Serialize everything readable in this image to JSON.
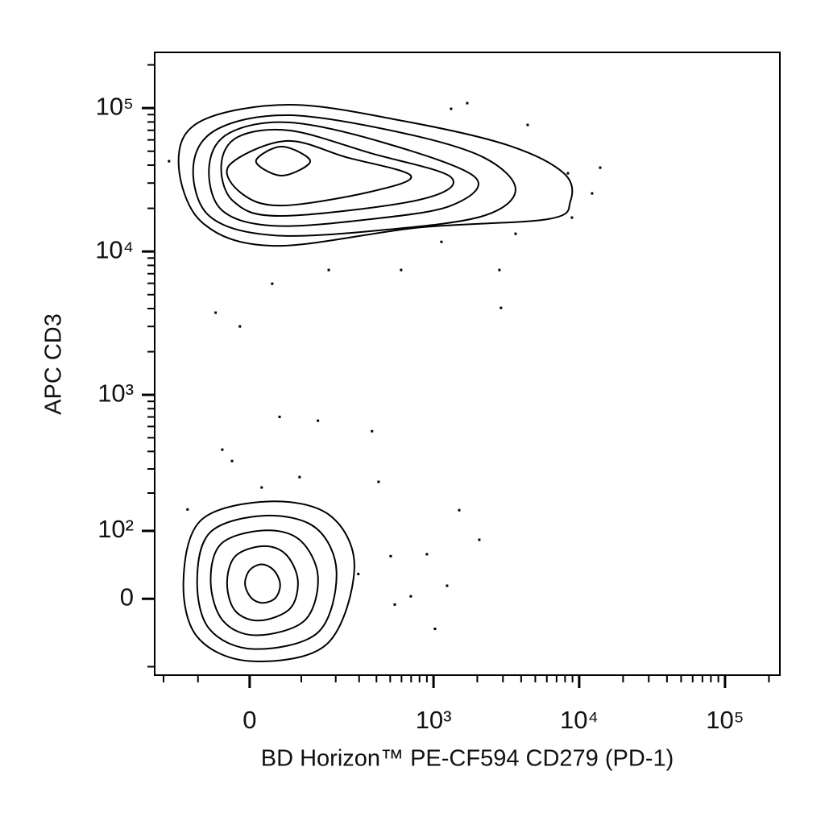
{
  "chart_data": {
    "type": "contour",
    "xlabel": "BD Horizon™ PE-CF594 CD279 (PD-1)",
    "ylabel": "APC CD3",
    "xscale": "biexponential",
    "yscale": "biexponential",
    "xlim": [
      -234,
      237800
    ],
    "ylim": [
      -118,
      244500
    ],
    "xticks": [
      0,
      {
        "value": 1000,
        "label": "10³"
      },
      {
        "value": 10000,
        "label": "10⁴"
      },
      {
        "value": 100000,
        "label": "10⁵"
      }
    ],
    "yticks": [
      0,
      {
        "value": 100,
        "label": "10²"
      },
      {
        "value": 1000,
        "label": "10³"
      },
      {
        "value": 10000,
        "label": "10⁴"
      },
      {
        "value": 100000,
        "label": "10⁵"
      }
    ],
    "xminorticks": [
      -200,
      -100,
      100,
      200,
      300,
      400,
      500,
      600,
      700,
      800,
      900,
      2000,
      3000,
      4000,
      5000,
      6000,
      7000,
      8000,
      9000,
      20000,
      30000,
      40000,
      50000,
      60000,
      70000,
      80000,
      90000,
      200000
    ],
    "yminorticks": [
      -100,
      200,
      300,
      400,
      500,
      600,
      700,
      800,
      900,
      2000,
      3000,
      4000,
      5000,
      6000,
      7000,
      8000,
      9000,
      20000,
      30000,
      40000,
      50000,
      60000,
      70000,
      80000,
      90000,
      200000
    ],
    "color": "#000000",
    "contours": [
      {
        "x": [
          277,
          181,
          36,
          -92,
          -137,
          -102,
          0,
          168
        ],
        "y": [
          39,
          134,
          173,
          124,
          23,
          -49,
          -89,
          -61
        ]
      },
      {
        "x": [
          203,
          137,
          28,
          -72,
          -102,
          -75,
          7,
          143
        ],
        "y": [
          33,
          106,
          134,
          98,
          23,
          -38,
          -68,
          -43
        ]
      },
      {
        "x": [
          143,
          96,
          25,
          -51,
          -72,
          -48,
          11,
          108
        ],
        "y": [
          28,
          83,
          101,
          76,
          21,
          -27,
          -47,
          -27
        ]
      },
      {
        "x": [
          92,
          66,
          24,
          -25,
          -40,
          -25,
          17,
          75
        ],
        "y": [
          23,
          59,
          72,
          56,
          19,
          -15,
          -27,
          -12
        ]
      },
      {
        "x": [
          55,
          43,
          21,
          0,
          -8,
          3,
          23,
          46
        ],
        "y": [
          18,
          36,
          44,
          36,
          18,
          1,
          -5,
          1
        ]
      },
      {
        "x": [
          -151,
          -92,
          75,
          612,
          3223,
          7856,
          8694,
          6090,
          792,
          43,
          -92
        ],
        "y": [
          42600,
          81400,
          105400,
          81400,
          55200,
          35100,
          22300,
          16800,
          14700,
          10950,
          16100
        ]
      },
      {
        "x": [
          -111,
          -58,
          75,
          612,
          2199,
          3662,
          2199,
          472,
          43,
          -75
        ],
        "y": [
          39900,
          71500,
          89100,
          67000,
          45400,
          27100,
          17700,
          14200,
          12960,
          17700
        ]
      },
      {
        "x": [
          -75,
          -36,
          75,
          472,
          1935,
          1321,
          363,
          43,
          -51
        ],
        "y": [
          39900,
          67000,
          79300,
          56600,
          32900,
          20900,
          16800,
          15100,
          19600
        ]
      },
      {
        "x": [
          -51,
          -21,
          75,
          363,
          1321,
          792,
          58,
          -28
        ],
        "y": [
          39900,
          62800,
          69700,
          48500,
          32900,
          22900,
          17700,
          22300
        ]
      },
      {
        "x": [
          -36,
          66,
          241,
          696,
          363,
          58,
          -14
        ],
        "y": [
          39900,
          58900,
          45400,
          33800,
          26100,
          20900,
          25400
        ]
      },
      {
        "x": [
          11,
          58,
          122,
          58
        ],
        "y": [
          42600,
          53800,
          42600,
          33800
        ]
      }
    ],
    "events": {
      "x": [
        -62,
        -17,
        54,
        143,
        372,
        -49,
        -31,
        414,
        1502,
        2065,
        2838,
        2908,
        40,
        176,
        596,
        1134,
        3662,
        8921,
        13930,
        12260,
        8371,
        1705,
        1321,
        4433,
        504,
        696,
        1023,
        1240,
        296,
        538,
        900,
        21,
        96,
        -126,
        -181
      ],
      "y": [
        3744,
        3004,
        701,
        659,
        556,
        412,
        342,
        242,
        148,
        83,
        7430,
        4043,
        5960,
        7430,
        7430,
        11670,
        13290,
        17230,
        38400,
        25400,
        35100,
        108200,
        98800,
        76300,
        56,
        3,
        -38,
        16,
        31,
        -7,
        59,
        220,
        262,
        150,
        42600
      ]
    }
  }
}
